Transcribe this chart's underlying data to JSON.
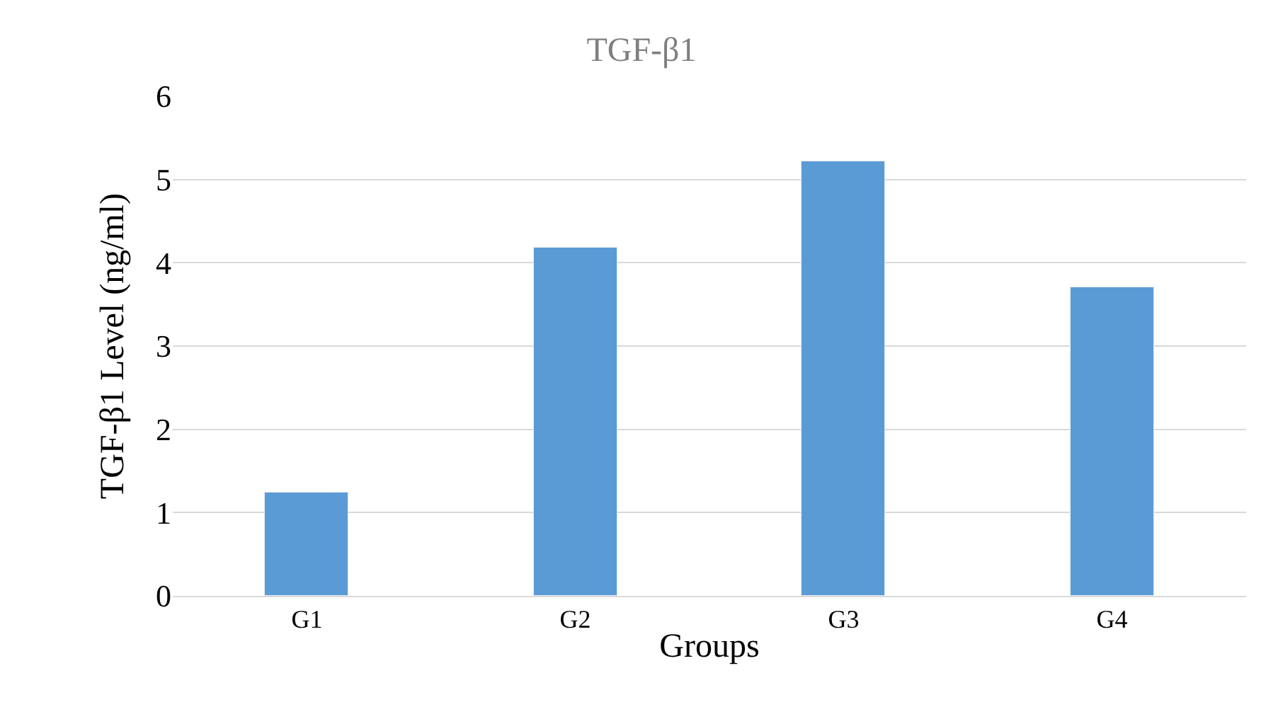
{
  "chart_data": {
    "type": "bar",
    "title": "TGF-β1",
    "xlabel": "Groups",
    "ylabel": "TGF-β1 Level (ng/ml)",
    "categories": [
      "G1",
      "G2",
      "G3",
      "G4"
    ],
    "values": [
      1.24,
      4.18,
      5.22,
      3.71
    ],
    "color": "#5b9bd5",
    "ylim": [
      0,
      6
    ],
    "yticks": [
      0,
      1,
      2,
      3,
      4,
      5,
      6
    ],
    "grid": "y"
  }
}
